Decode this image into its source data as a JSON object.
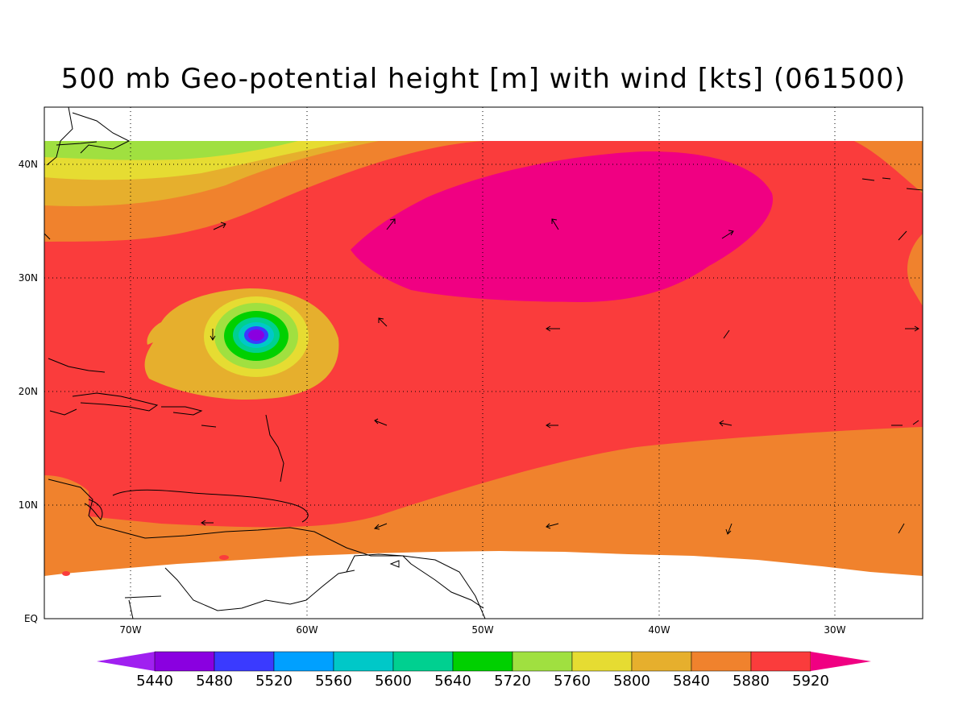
{
  "title": "500 mb Geo-potential height [m] with wind [kts] (061500)",
  "map": {
    "lon_range": [
      -75,
      -25
    ],
    "lat_range": [
      0,
      45
    ],
    "lon_ticks": [
      "70W",
      "60W",
      "50W",
      "40W",
      "30W"
    ],
    "lat_ticks": [
      "EQ",
      "10N",
      "20N",
      "30N",
      "40N"
    ],
    "grid": "dotted",
    "coastline_color": "#000000"
  },
  "colorbar": {
    "labels": [
      "5440",
      "5480",
      "5520",
      "5560",
      "5600",
      "5640",
      "5720",
      "5760",
      "5800",
      "5840",
      "5880",
      "5920"
    ],
    "colors": [
      "#a020f0",
      "#8a00e0",
      "#3a3aff",
      "#00a0ff",
      "#00c8c8",
      "#00d090",
      "#00d000",
      "#a0e040",
      "#e6dc32",
      "#e6af2d",
      "#f0822d",
      "#fa3c3c",
      "#f00082"
    ]
  },
  "fields": {
    "c5840": "#e6af2d",
    "c5880": "#f0822d",
    "c5920": "#fa3c3c",
    "c5960": "#f00082",
    "c5800": "#e6dc32",
    "c5760": "#a0e040",
    "c5720": "#00d000",
    "c5640": "#00d090",
    "c5600": "#00c8c8",
    "c5520": "#3a3aff",
    "c5480": "#8a00e0"
  }
}
